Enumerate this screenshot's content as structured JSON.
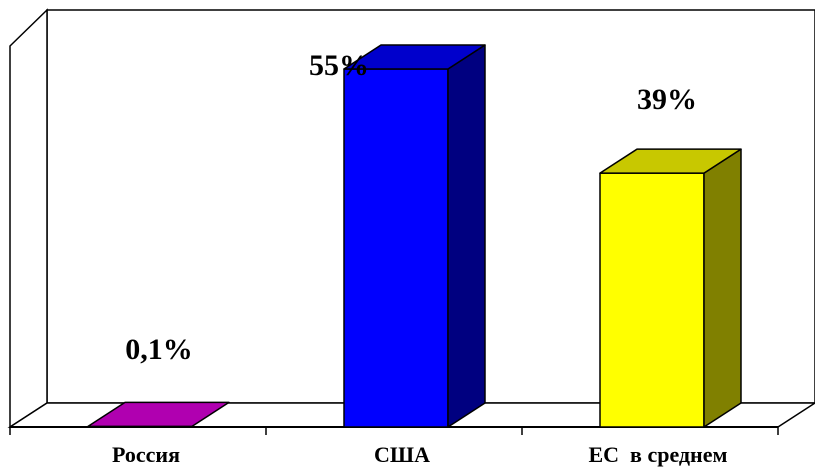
{
  "chart_data": {
    "type": "bar",
    "categories": [
      "Россия",
      "США",
      "ЕС  в среднем"
    ],
    "values": [
      0.1,
      55,
      39
    ],
    "data_labels": [
      "0,1%",
      "55%",
      "39%"
    ],
    "ylim": [
      0,
      60
    ],
    "title": "",
    "xlabel": "",
    "ylabel": "",
    "grid": false,
    "legend": "none",
    "colors": [
      {
        "front": "#c000c0",
        "top": "#b000b0",
        "side": "#800080"
      },
      {
        "front": "#0000ff",
        "top": "#0000cc",
        "side": "#000080"
      },
      {
        "front": "#ffff00",
        "top": "#c8c800",
        "side": "#808000"
      }
    ]
  }
}
